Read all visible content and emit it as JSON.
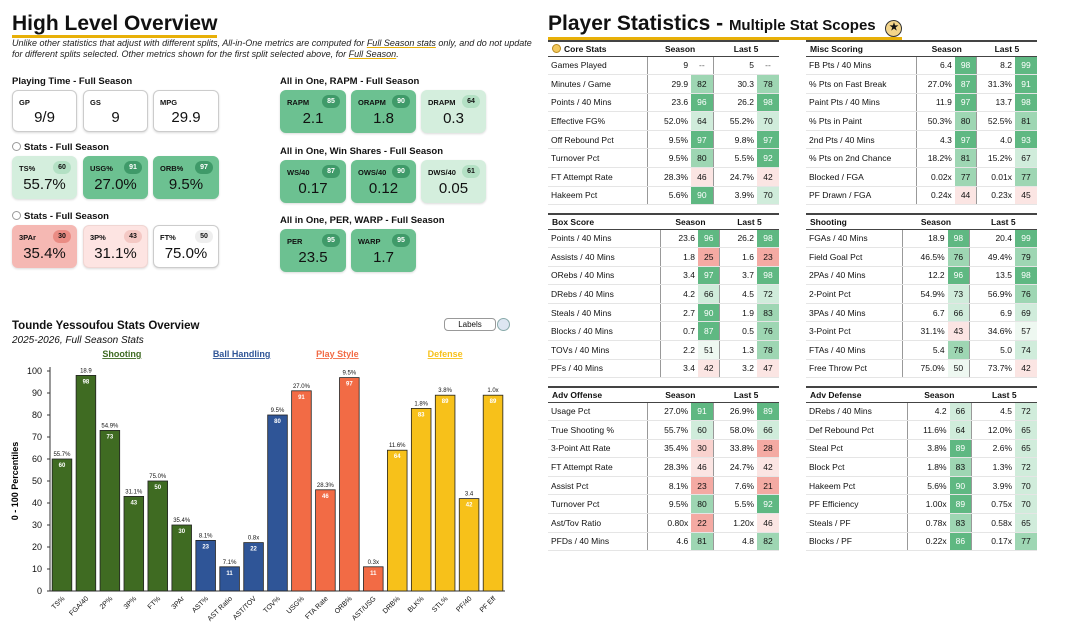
{
  "overview": {
    "title": "High Level Overview",
    "desc_pre": "Unlike other statistics that adjust with different splits, All-in-One metrics are computed for ",
    "desc_link1": "Full Season stats",
    "desc_mid": " only, and do not update for different splits selected. Other metrics shown for the first split selected above, for ",
    "desc_link2": "Full Season",
    "desc_end": "."
  },
  "groups": {
    "playing_time": "Playing Time - Full Season",
    "stats1": "Stats - Full Season",
    "stats2": "Stats - Full Season",
    "rapm": "All in One, RAPM - Full Season",
    "ws": "All in One, Win Shares - Full Season",
    "per": "All in One, PER, WARP - Full Season"
  },
  "cards": {
    "gp": {
      "label": "GP",
      "value": "9/9"
    },
    "gs": {
      "label": "GS",
      "value": "9"
    },
    "mpg": {
      "label": "MPG",
      "value": "29.9"
    },
    "ts": {
      "label": "TS%",
      "pct": "60",
      "value": "55.7%"
    },
    "usg": {
      "label": "USG%",
      "pct": "91",
      "value": "27.0%"
    },
    "orb": {
      "label": "ORB%",
      "pct": "97",
      "value": "9.5%"
    },
    "par3": {
      "label": "3PAr",
      "pct": "30",
      "value": "35.4%"
    },
    "p3": {
      "label": "3P%",
      "pct": "43",
      "value": "31.1%"
    },
    "ft": {
      "label": "FT%",
      "pct": "50",
      "value": "75.0%"
    },
    "rapm": {
      "label": "RAPM",
      "pct": "85",
      "value": "2.1"
    },
    "orapm": {
      "label": "ORAPM",
      "pct": "90",
      "value": "1.8"
    },
    "drapm": {
      "label": "DRAPM",
      "pct": "64",
      "value": "0.3"
    },
    "ws40": {
      "label": "WS/40",
      "pct": "87",
      "value": "0.17"
    },
    "ows40": {
      "label": "OWS/40",
      "pct": "90",
      "value": "0.12"
    },
    "dws40": {
      "label": "DWS/40",
      "pct": "61",
      "value": "0.05"
    },
    "per": {
      "label": "PER",
      "pct": "95",
      "value": "23.5"
    },
    "warp": {
      "label": "WARP",
      "pct": "95",
      "value": "1.7"
    }
  },
  "stats": {
    "title": "Player Statistics",
    "subtitle": "Multiple Stat Scopes",
    "icon": "medal-icon",
    "col_season": "Season",
    "col_last5": "Last 5",
    "tables": [
      {
        "key": "core",
        "title": "Core Stats",
        "rows": [
          [
            "Games Played",
            "9",
            "--",
            "5",
            "--"
          ],
          [
            "Minutes / Game",
            "29.9",
            "82",
            "30.3",
            "78"
          ],
          [
            "Points / 40 Mins",
            "23.6",
            "96",
            "26.2",
            "98"
          ],
          [
            "Effective FG%",
            "52.0%",
            "64",
            "55.2%",
            "70"
          ],
          [
            "Off Rebound Pct",
            "9.5%",
            "97",
            "9.8%",
            "97"
          ],
          [
            "Turnover Pct",
            "9.5%",
            "80",
            "5.5%",
            "92"
          ],
          [
            "FT Attempt Rate",
            "28.3%",
            "46",
            "24.7%",
            "42"
          ],
          [
            "Hakeem Pct",
            "5.6%",
            "90",
            "3.9%",
            "70"
          ]
        ]
      },
      {
        "key": "misc",
        "title": "Misc Scoring",
        "rows": [
          [
            "FB Pts / 40 Mins",
            "6.4",
            "98",
            "8.2",
            "99"
          ],
          [
            "% Pts on Fast Break",
            "27.0%",
            "87",
            "31.3%",
            "91"
          ],
          [
            "Paint Pts / 40 Mins",
            "11.9",
            "97",
            "13.7",
            "98"
          ],
          [
            "% Pts in Paint",
            "50.3%",
            "80",
            "52.5%",
            "81"
          ],
          [
            "2nd Pts / 40 Mins",
            "4.3",
            "97",
            "4.0",
            "93"
          ],
          [
            "% Pts on 2nd Chance",
            "18.2%",
            "81",
            "15.2%",
            "67"
          ],
          [
            "Blocked / FGA",
            "0.02x",
            "77",
            "0.01x",
            "77"
          ],
          [
            "PF Drawn / FGA",
            "0.24x",
            "44",
            "0.23x",
            "45"
          ]
        ]
      },
      {
        "key": "box",
        "title": "Box Score",
        "rows": [
          [
            "Points / 40 Mins",
            "23.6",
            "96",
            "26.2",
            "98"
          ],
          [
            "Assists / 40 Mins",
            "1.8",
            "25",
            "1.6",
            "23"
          ],
          [
            "ORebs / 40 Mins",
            "3.4",
            "97",
            "3.7",
            "98"
          ],
          [
            "DRebs / 40 Mins",
            "4.2",
            "66",
            "4.5",
            "72"
          ],
          [
            "Steals / 40 Mins",
            "2.7",
            "90",
            "1.9",
            "83"
          ],
          [
            "Blocks / 40 Mins",
            "0.7",
            "87",
            "0.5",
            "76"
          ],
          [
            "TOVs / 40 Mins",
            "2.2",
            "51",
            "1.3",
            "78"
          ],
          [
            "PFs / 40 Mins",
            "3.4",
            "42",
            "3.2",
            "47"
          ]
        ]
      },
      {
        "key": "shoot",
        "title": "Shooting",
        "rows": [
          [
            "FGAs / 40 Mins",
            "18.9",
            "98",
            "20.4",
            "99"
          ],
          [
            "Field Goal Pct",
            "46.5%",
            "76",
            "49.4%",
            "79"
          ],
          [
            "2PAs / 40 Mins",
            "12.2",
            "96",
            "13.5",
            "98"
          ],
          [
            "2-Point Pct",
            "54.9%",
            "73",
            "56.9%",
            "76"
          ],
          [
            "3PAs / 40 Mins",
            "6.7",
            "66",
            "6.9",
            "69"
          ],
          [
            "3-Point Pct",
            "31.1%",
            "43",
            "34.6%",
            "57"
          ],
          [
            "FTAs / 40 Mins",
            "5.4",
            "78",
            "5.0",
            "74"
          ],
          [
            "Free Throw Pct",
            "75.0%",
            "50",
            "73.7%",
            "42"
          ]
        ]
      },
      {
        "key": "advo",
        "title": "Adv Offense",
        "rows": [
          [
            "Usage Pct",
            "27.0%",
            "91",
            "26.9%",
            "89"
          ],
          [
            "True Shooting %",
            "55.7%",
            "60",
            "58.0%",
            "66"
          ],
          [
            "3-Point Att Rate",
            "35.4%",
            "30",
            "33.8%",
            "28"
          ],
          [
            "FT Attempt Rate",
            "28.3%",
            "46",
            "24.7%",
            "42"
          ],
          [
            "Assist Pct",
            "8.1%",
            "23",
            "7.6%",
            "21"
          ],
          [
            "Turnover Pct",
            "9.5%",
            "80",
            "5.5%",
            "92"
          ],
          [
            "Ast/Tov Ratio",
            "0.80x",
            "22",
            "1.20x",
            "46"
          ],
          [
            "PFDs / 40 Mins",
            "4.6",
            "81",
            "4.8",
            "82"
          ]
        ]
      },
      {
        "key": "advd",
        "title": "Adv Defense",
        "rows": [
          [
            "DRebs / 40 Mins",
            "4.2",
            "66",
            "4.5",
            "72"
          ],
          [
            "Def Rebound Pct",
            "11.6%",
            "64",
            "12.0%",
            "65"
          ],
          [
            "Steal Pct",
            "3.8%",
            "89",
            "2.6%",
            "65"
          ],
          [
            "Block Pct",
            "1.8%",
            "83",
            "1.3%",
            "72"
          ],
          [
            "Hakeem Pct",
            "5.6%",
            "90",
            "3.9%",
            "70"
          ],
          [
            "PF Efficiency",
            "1.00x",
            "89",
            "0.75x",
            "70"
          ],
          [
            "Steals / PF",
            "0.78x",
            "83",
            "0.58x",
            "65"
          ],
          [
            "Blocks / PF",
            "0.22x",
            "86",
            "0.17x",
            "77"
          ]
        ]
      }
    ]
  },
  "chart": {
    "title": "Tounde Yessoufou Stats Overview",
    "subtitle": "2025-2026, Full Season Stats",
    "labels_button": "Labels",
    "ylabel": "0 - 100 Percentiles"
  },
  "chart_data": {
    "type": "bar",
    "title": "Tounde Yessoufou Stats Overview",
    "ylabel": "0 - 100 Percentiles",
    "ylim": [
      0,
      100
    ],
    "yticks": [
      0,
      10,
      20,
      30,
      40,
      50,
      60,
      70,
      80,
      90,
      100
    ],
    "groups": [
      {
        "name": "Shooting",
        "color": "#3f6b22"
      },
      {
        "name": "Ball Handling",
        "color": "#2f5597"
      },
      {
        "name": "Play Style",
        "color": "#f26b45"
      },
      {
        "name": "Defense",
        "color": "#f7c11a"
      }
    ],
    "bars": [
      {
        "cat": "TS%",
        "value": 60,
        "label": "55.7%",
        "group": 0
      },
      {
        "cat": "FGA/40",
        "value": 98,
        "label": "18.9",
        "group": 0
      },
      {
        "cat": "2P%",
        "value": 73,
        "label": "54.9%",
        "group": 0
      },
      {
        "cat": "3P%",
        "value": 43,
        "label": "31.1%",
        "group": 0
      },
      {
        "cat": "FT%",
        "value": 50,
        "label": "75.0%",
        "group": 0
      },
      {
        "cat": "3PAr",
        "value": 30,
        "label": "35.4%",
        "group": 0
      },
      {
        "cat": "AST%",
        "value": 23,
        "label": "8.1%",
        "group": 1
      },
      {
        "cat": "AST Ratio",
        "value": 11,
        "label": "7.1%",
        "group": 1
      },
      {
        "cat": "AST/TOV",
        "value": 22,
        "label": "0.8x",
        "group": 1
      },
      {
        "cat": "TOV%",
        "value": 80,
        "label": "9.5%",
        "group": 1
      },
      {
        "cat": "USG%",
        "value": 91,
        "label": "27.0%",
        "group": 2
      },
      {
        "cat": "FTA Rate",
        "value": 46,
        "label": "28.3%",
        "group": 2
      },
      {
        "cat": "ORB%",
        "value": 97,
        "label": "9.5%",
        "group": 2
      },
      {
        "cat": "AST/USG",
        "value": 11,
        "label": "0.3x",
        "group": 2
      },
      {
        "cat": "DRB%",
        "value": 64,
        "label": "11.6%",
        "group": 3
      },
      {
        "cat": "BLK%",
        "value": 83,
        "label": "1.8%",
        "group": 3
      },
      {
        "cat": "STL%",
        "value": 89,
        "label": "3.8%",
        "group": 3
      },
      {
        "cat": "PF/40",
        "value": 42,
        "label": "3.4",
        "group": 3
      },
      {
        "cat": "PF Eff",
        "value": 89,
        "label": "1.0x",
        "group": 3
      }
    ]
  }
}
